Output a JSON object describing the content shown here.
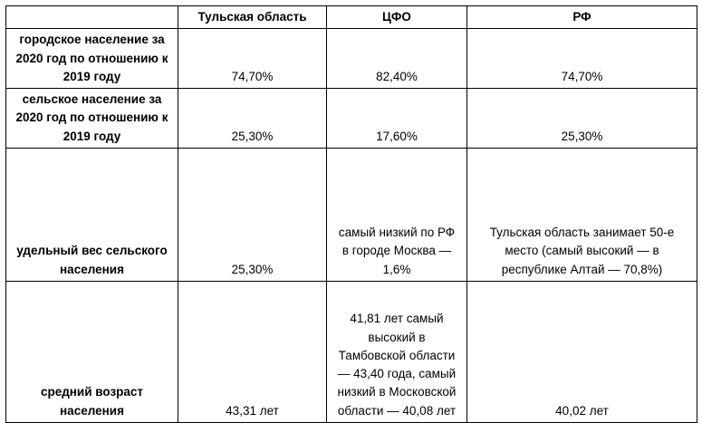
{
  "page": {
    "background_color": "#ffffff",
    "border_color": "#000000",
    "text_color": "#000000"
  },
  "table": {
    "headers": [
      "",
      "Тульская область",
      "ЦФО",
      "РФ"
    ],
    "rows": [
      {
        "label": "городское население за 2020 год по отношению к 2019 году",
        "values": [
          "74,70%",
          "82,40%",
          "74,70%"
        ]
      },
      {
        "label": "сельское население за 2020 год по отношению к 2019 году",
        "values": [
          "25,30%",
          "17,60%",
          "25,30%"
        ]
      },
      {
        "label": "удельный вес сельского населения",
        "values": [
          "25,30%",
          "самый низкий по РФ в городе Москва — 1,6%",
          "Тульская область занимает 50-е место (самый высокий — в республике Алтай — 70,8%)"
        ]
      },
      {
        "label": "средний возраст населения",
        "values": [
          "43,31 лет",
          "41,81 лет самый высокий в Тамбовской области — 43,40 года, самый низкий в Московской области — 40,08 лет",
          "40,02 лет"
        ]
      }
    ]
  }
}
